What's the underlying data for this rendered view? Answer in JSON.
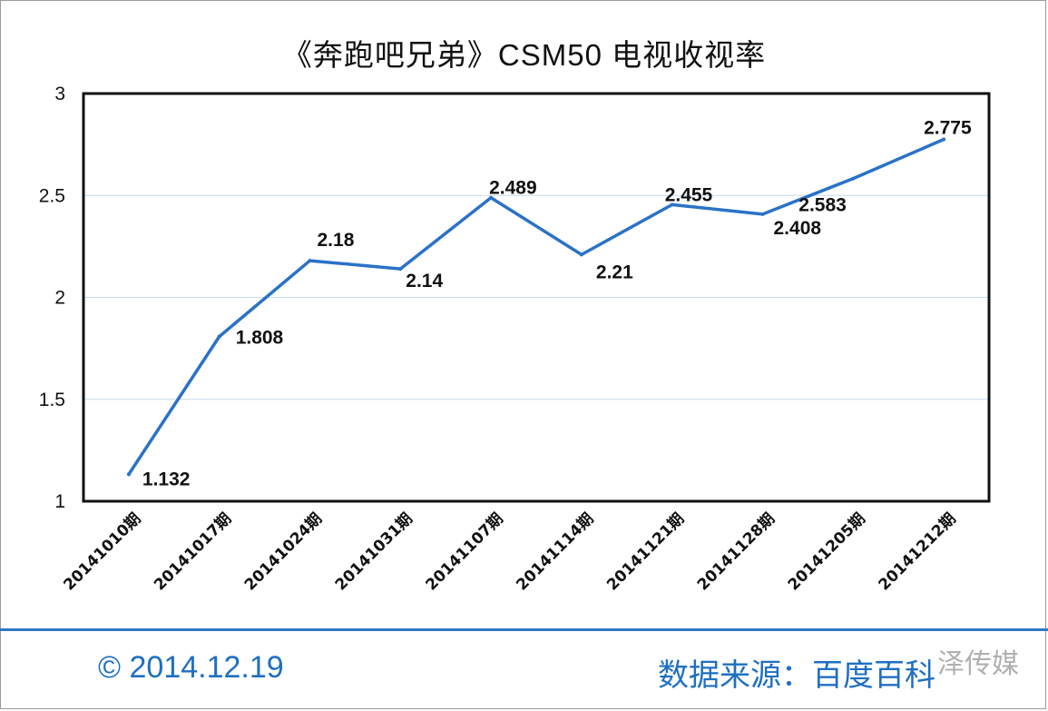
{
  "chart_data": {
    "type": "line",
    "title": "《奔跑吧兄弟》CSM50 电视收视率",
    "categories": [
      "20141010期",
      "20141017期",
      "20141024期",
      "20141031期",
      "20141107期",
      "20141114期",
      "20141121期",
      "20141128期",
      "20141205期",
      "20141212期"
    ],
    "series": [
      {
        "values": [
          1.132,
          1.808,
          2.18,
          2.14,
          2.489,
          2.21,
          2.455,
          2.408,
          2.583,
          2.775
        ],
        "labels": [
          "1.132",
          "1.808",
          "2.18",
          "2.14",
          "2.489",
          "2.21",
          "2.455",
          "2.408",
          "2.583",
          "2.775"
        ]
      }
    ],
    "ylim": [
      1,
      3
    ],
    "yticks": [
      "1",
      "1.5",
      "2",
      "2.5",
      "3"
    ],
    "grid": true,
    "line_color": "#2a72c8"
  },
  "footer": {
    "date": "© 2014.12.19",
    "source": "数据来源：百度百科",
    "watermark": "泽传媒"
  }
}
